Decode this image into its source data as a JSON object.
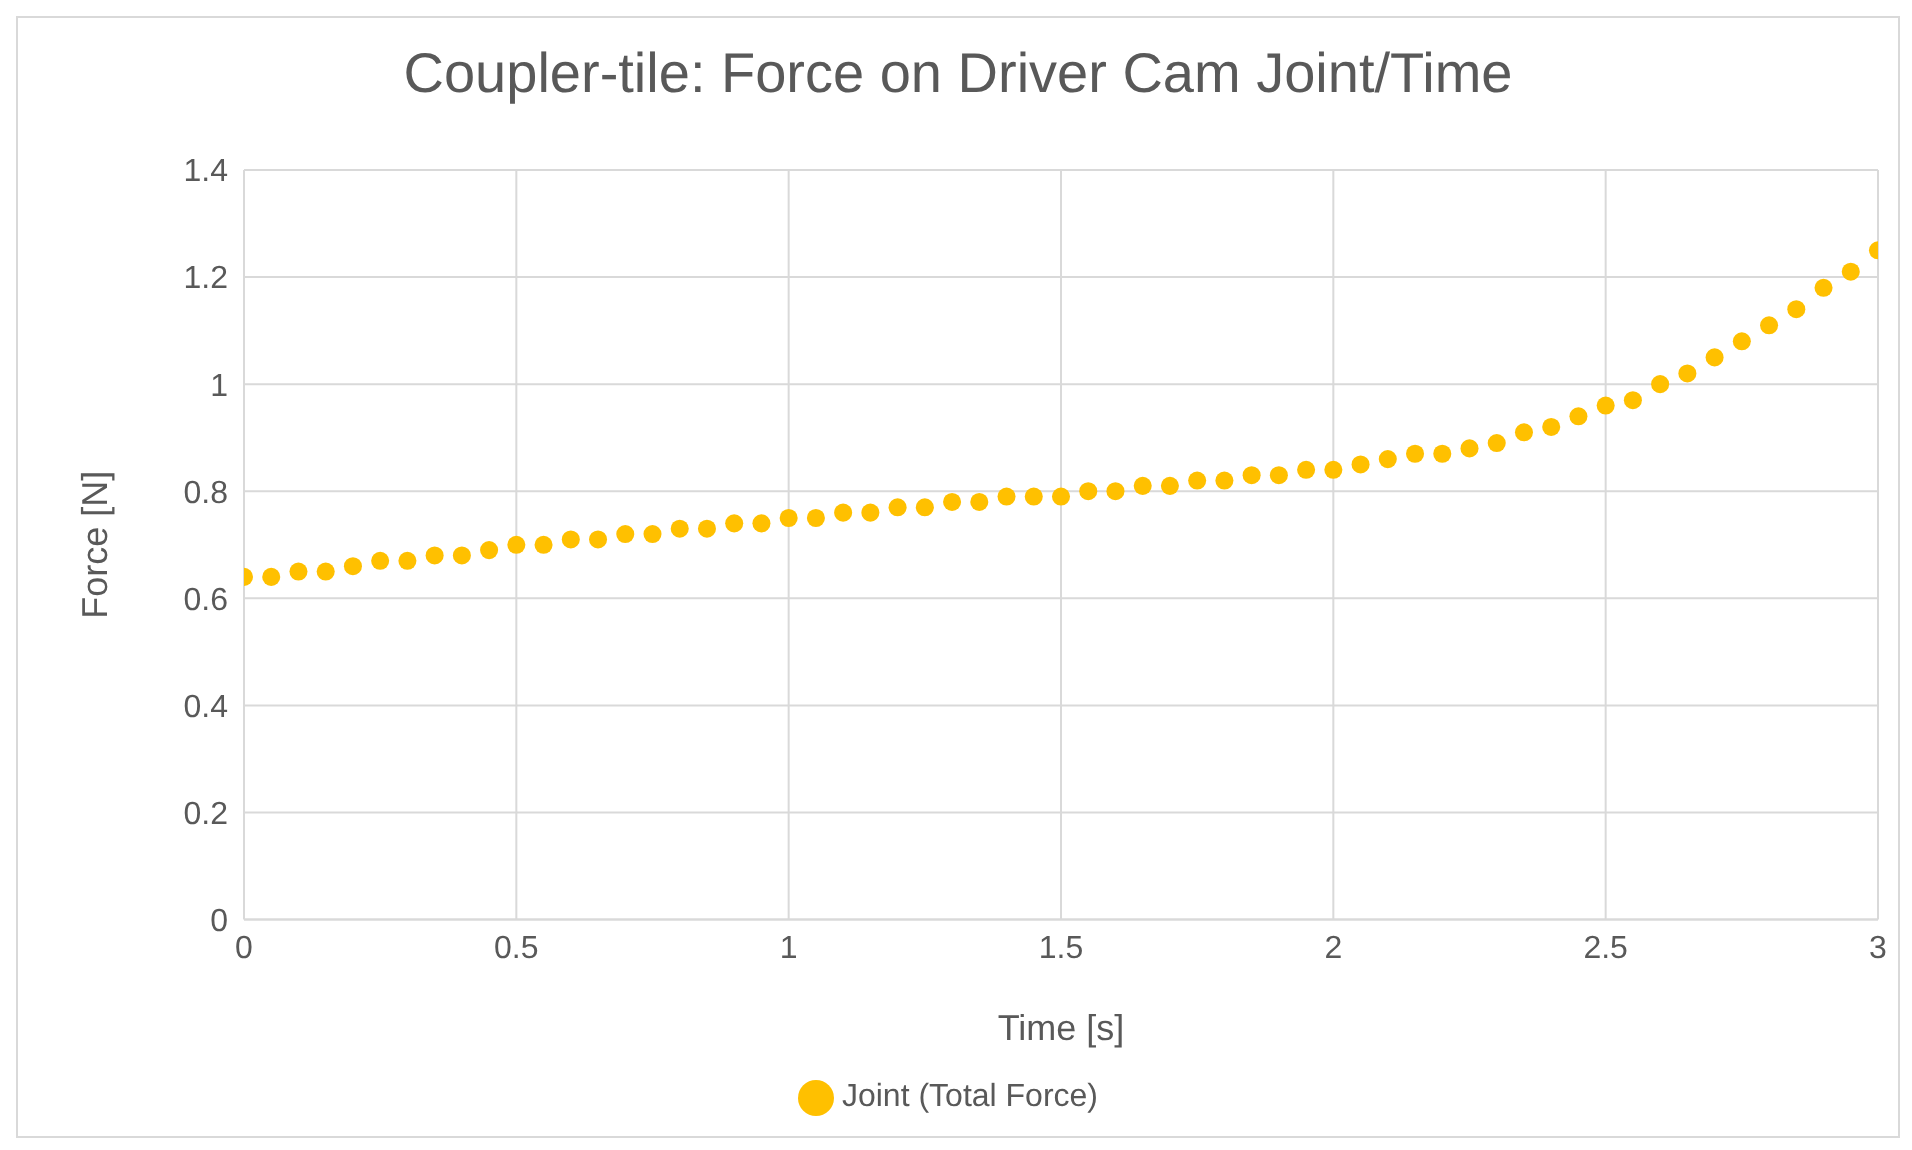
{
  "chart_data": {
    "type": "scatter",
    "title": "Coupler-tile: Force on Driver Cam Joint/Time",
    "xlabel": "Time [s]",
    "ylabel": "Force [N]",
    "x": [
      0,
      0.05,
      0.1,
      0.15,
      0.2,
      0.25,
      0.3,
      0.35,
      0.4,
      0.45,
      0.5,
      0.55,
      0.6,
      0.65,
      0.7,
      0.75,
      0.8,
      0.85,
      0.9,
      0.95,
      1,
      1.05,
      1.1,
      1.15,
      1.2,
      1.25,
      1.3,
      1.35,
      1.4,
      1.45,
      1.5,
      1.55,
      1.6,
      1.65,
      1.7,
      1.75,
      1.8,
      1.85,
      1.9,
      1.95,
      2,
      2.05,
      2.1,
      2.15,
      2.2,
      2.25,
      2.3,
      2.35,
      2.4,
      2.45,
      2.5,
      2.55,
      2.6,
      2.65,
      2.7,
      2.75,
      2.8,
      2.85,
      2.9,
      2.95,
      3
    ],
    "series": [
      {
        "name": "Joint (Total Force)",
        "color": "#ffc000",
        "values": [
          0.64,
          0.64,
          0.65,
          0.65,
          0.66,
          0.67,
          0.67,
          0.68,
          0.68,
          0.69,
          0.7,
          0.7,
          0.71,
          0.71,
          0.72,
          0.72,
          0.73,
          0.73,
          0.74,
          0.74,
          0.75,
          0.75,
          0.76,
          0.76,
          0.77,
          0.77,
          0.78,
          0.78,
          0.79,
          0.79,
          0.79,
          0.8,
          0.8,
          0.81,
          0.81,
          0.82,
          0.82,
          0.83,
          0.83,
          0.84,
          0.84,
          0.85,
          0.86,
          0.87,
          0.87,
          0.88,
          0.89,
          0.91,
          0.92,
          0.94,
          0.96,
          0.97,
          1.0,
          1.02,
          1.05,
          1.08,
          1.11,
          1.14,
          1.18,
          1.21,
          1.25
        ]
      }
    ],
    "xlim": [
      0,
      3
    ],
    "xticks": [
      0,
      0.5,
      1,
      1.5,
      2,
      2.5,
      3
    ],
    "ylim": [
      0,
      1.4
    ],
    "yticks": [
      0,
      0.2,
      0.4,
      0.6,
      0.8,
      1,
      1.2,
      1.4
    ],
    "grid": true,
    "legend": "bottom",
    "marker": "circle"
  }
}
